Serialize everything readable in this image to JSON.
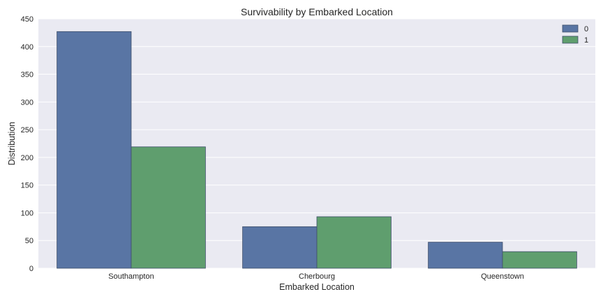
{
  "chart_data": {
    "type": "bar",
    "title": "Survivability by Embarked Location",
    "xlabel": "Embarked Location",
    "ylabel": "Distribution",
    "categories": [
      "Southampton",
      "Cherbourg",
      "Queenstown"
    ],
    "series": [
      {
        "name": "0",
        "values": [
          427,
          75,
          47
        ]
      },
      {
        "name": "1",
        "values": [
          219,
          93,
          30
        ]
      }
    ],
    "ylim": [
      0,
      450
    ],
    "yticks": [
      0,
      50,
      100,
      150,
      200,
      250,
      300,
      350,
      400,
      450
    ],
    "grid": true,
    "legend_position": "top-right",
    "colors": [
      "#5975a4",
      "#5f9e6e"
    ],
    "background": "#eaeaf2"
  }
}
